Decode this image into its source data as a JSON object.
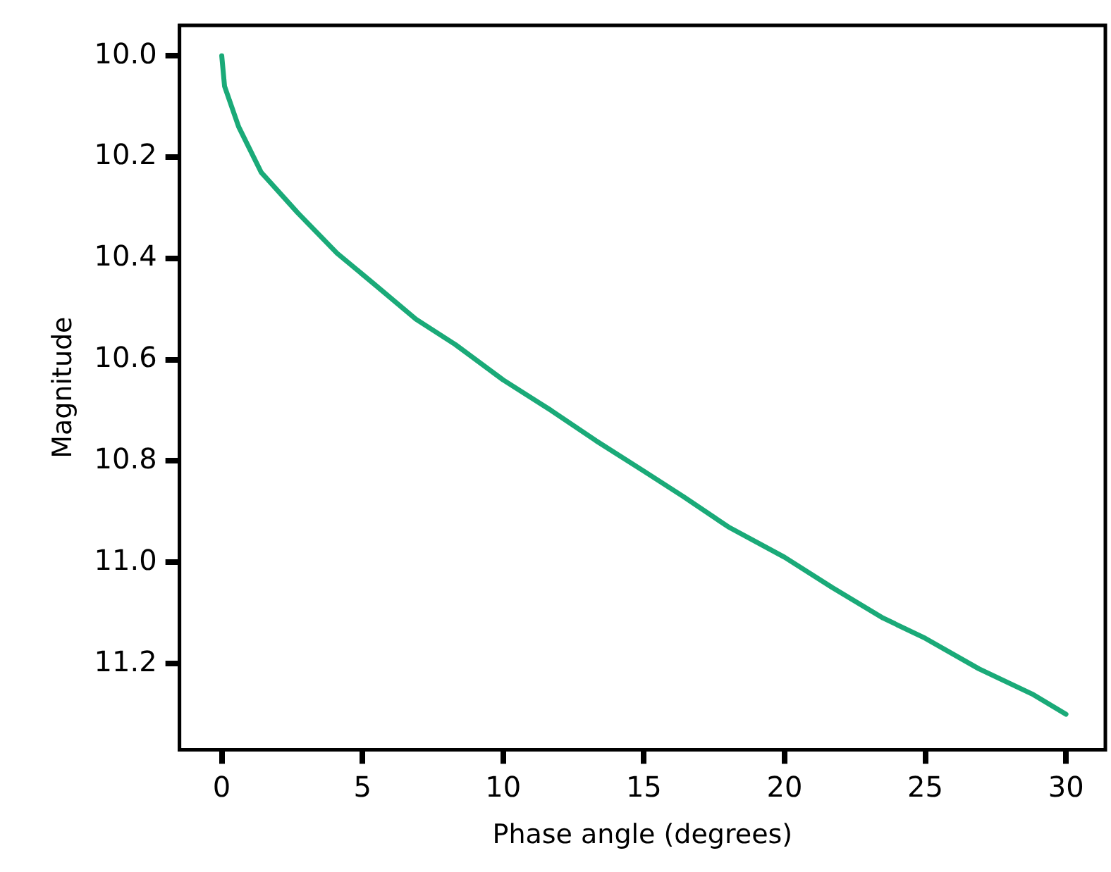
{
  "chart_data": {
    "type": "line",
    "xlabel": "Phase angle (degrees)",
    "ylabel": "Magnitude",
    "series": [
      {
        "color": "#1aaa78",
        "x": [
          0,
          0.1,
          0.6,
          1.4,
          2.7,
          4.1,
          5.4,
          6.9,
          8.3,
          10,
          11.7,
          13.3,
          15,
          16.4,
          18,
          20,
          21.7,
          23.5,
          25,
          26.9,
          28.8,
          30
        ],
        "values": [
          10.0,
          10.06,
          10.14,
          10.23,
          10.31,
          10.39,
          10.45,
          10.52,
          10.57,
          10.64,
          10.7,
          10.76,
          10.82,
          10.87,
          10.93,
          10.99,
          11.05,
          11.11,
          11.15,
          11.21,
          11.26,
          11.3
        ]
      }
    ],
    "xlim": [
      -1.5,
      31.4
    ],
    "xticks": [
      0,
      5,
      10,
      15,
      20,
      25,
      30
    ],
    "ylim": [
      11.37,
      9.94
    ],
    "yticks": [
      {
        "value": 10.0,
        "label": "10.0"
      },
      {
        "value": 10.2,
        "label": "10.2"
      },
      {
        "value": 10.4,
        "label": "10.4"
      },
      {
        "value": 10.6,
        "label": "10.6"
      },
      {
        "value": 10.8,
        "label": "10.8"
      },
      {
        "value": 11.0,
        "label": "11.0"
      },
      {
        "value": 11.2,
        "label": "11.2"
      }
    ],
    "grid": false,
    "legend": false,
    "marker": "none",
    "line_style": "solid"
  }
}
